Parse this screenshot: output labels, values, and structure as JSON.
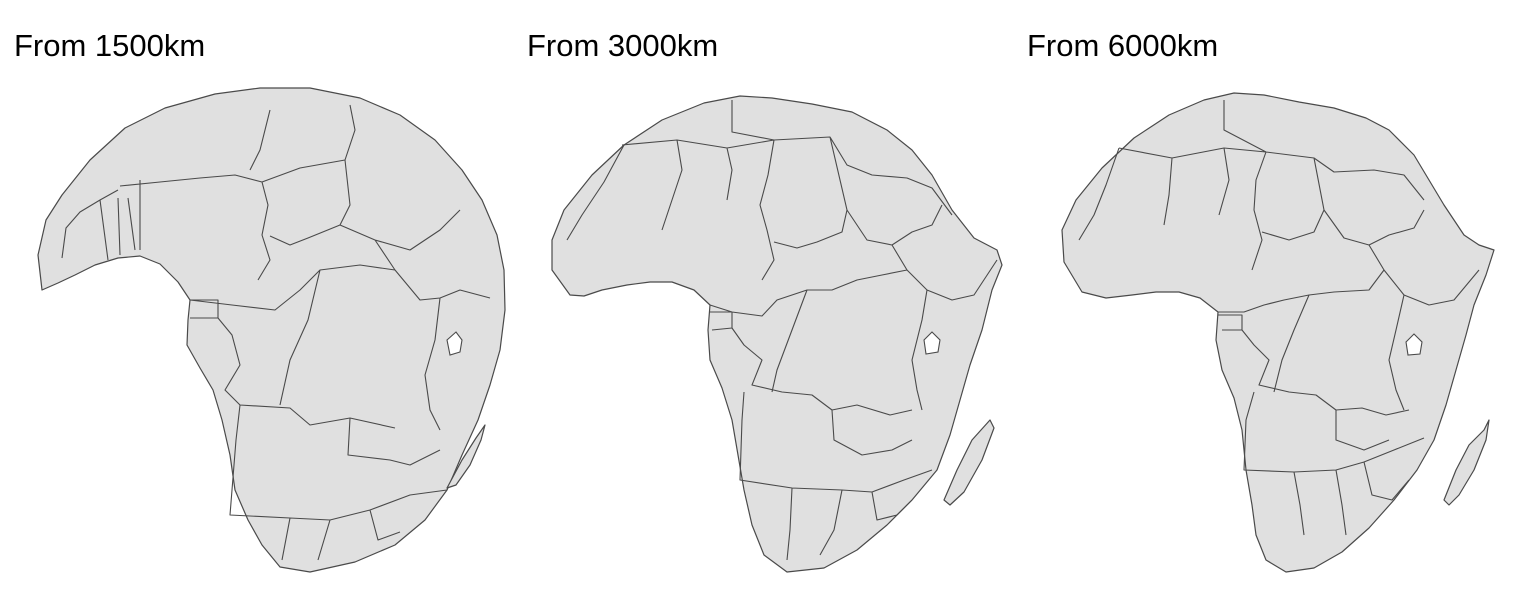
{
  "panels": [
    {
      "title": "From 1500km",
      "altitude_km": 1500
    },
    {
      "title": "From 3000km",
      "altitude_km": 3000
    },
    {
      "title": "From 6000km",
      "altitude_km": 6000
    }
  ],
  "style": {
    "land_fill": "#e0e0e0",
    "border_color": "#4a4a4a",
    "background": "#ffffff"
  }
}
